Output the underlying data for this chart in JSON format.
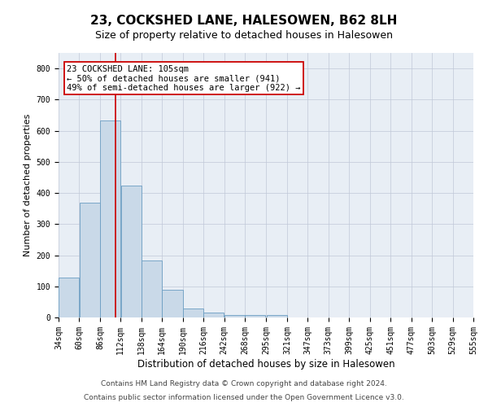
{
  "title": "23, COCKSHED LANE, HALESOWEN, B62 8LH",
  "subtitle": "Size of property relative to detached houses in Halesowen",
  "xlabel": "Distribution of detached houses by size in Halesowen",
  "ylabel": "Number of detached properties",
  "bin_edges": [
    34,
    60,
    86,
    112,
    138,
    164,
    190,
    216,
    242,
    268,
    295,
    321,
    347,
    373,
    399,
    425,
    451,
    477,
    503,
    529,
    555
  ],
  "bar_heights": [
    127,
    370,
    632,
    425,
    183,
    90,
    30,
    15,
    8,
    8,
    9,
    0,
    0,
    0,
    0,
    0,
    0,
    0,
    0,
    0
  ],
  "bar_color": "#c9d9e8",
  "bar_edge_color": "#6b9dc2",
  "property_size": 105,
  "vline_color": "#cc0000",
  "annotation_line1": "23 COCKSHED LANE: 105sqm",
  "annotation_line2": "← 50% of detached houses are smaller (941)",
  "annotation_line3": "49% of semi-detached houses are larger (922) →",
  "annotation_box_color": "#ffffff",
  "annotation_box_edge": "#cc0000",
  "grid_color": "#c0c8d8",
  "background_color": "#e8eef5",
  "footer_line1": "Contains HM Land Registry data © Crown copyright and database right 2024.",
  "footer_line2": "Contains public sector information licensed under the Open Government Licence v3.0.",
  "ylim": [
    0,
    850
  ],
  "yticks": [
    0,
    100,
    200,
    300,
    400,
    500,
    600,
    700,
    800
  ],
  "title_fontsize": 11,
  "subtitle_fontsize": 9,
  "xlabel_fontsize": 8.5,
  "ylabel_fontsize": 8,
  "tick_fontsize": 7,
  "annotation_fontsize": 7.5,
  "footer_fontsize": 6.5
}
